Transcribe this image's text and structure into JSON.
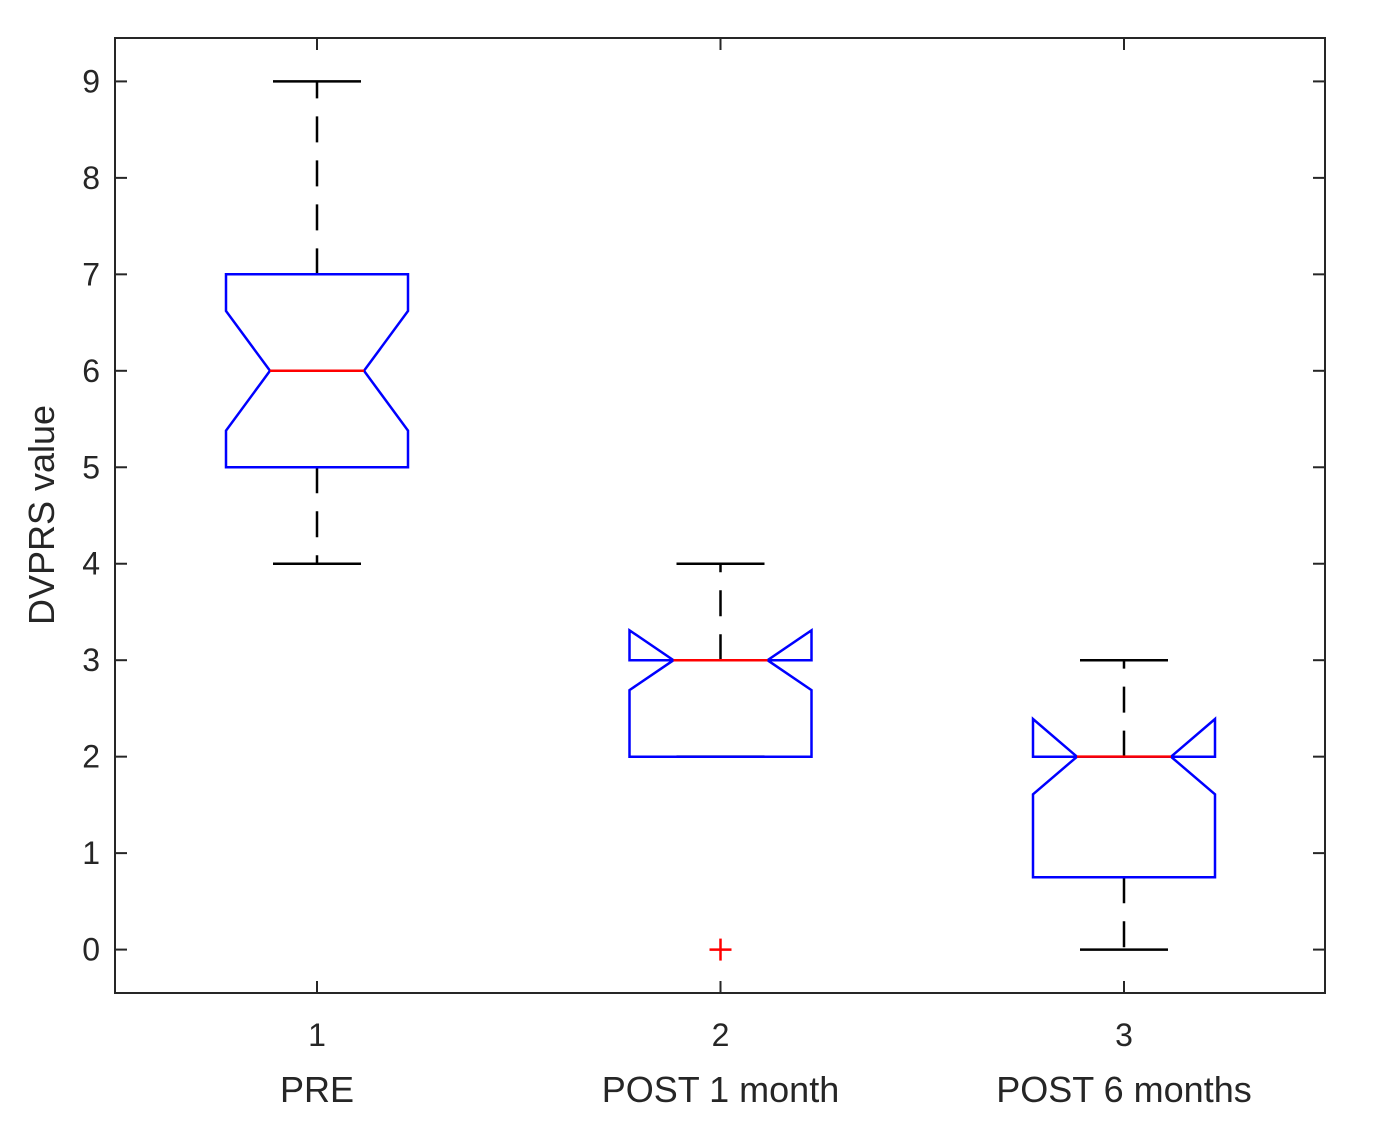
{
  "chart_data": {
    "type": "boxplot",
    "title": "",
    "xlabel": "",
    "ylabel": "DVPRS value",
    "ylim": [
      -0.45,
      9.45
    ],
    "yticks": [
      0,
      1,
      2,
      3,
      4,
      5,
      6,
      7,
      8,
      9
    ],
    "grid": false,
    "notched": true,
    "categories": [
      {
        "tick": "1",
        "name": "PRE"
      },
      {
        "tick": "2",
        "name": "POST 1 month"
      },
      {
        "tick": "3",
        "name": "POST 6 months"
      }
    ],
    "boxes": [
      {
        "whisker_low": 4,
        "q1": 5,
        "median": 6,
        "q3": 7,
        "whisker_high": 9,
        "notch_low": 5.38,
        "notch_high": 6.62,
        "outliers": []
      },
      {
        "whisker_low": 2,
        "q1": 2,
        "median": 3,
        "q3": 3,
        "whisker_high": 4,
        "notch_low": 2.69,
        "notch_high": 3.31,
        "outliers": [
          0
        ]
      },
      {
        "whisker_low": 0,
        "q1": 0.75,
        "median": 2,
        "q3": 2,
        "whisker_high": 3,
        "notch_low": 1.61,
        "notch_high": 2.39,
        "outliers": []
      }
    ],
    "colors": {
      "box": "#0000ff",
      "median": "#ff0000",
      "whisker": "#000000",
      "outlier": "#ff0000",
      "axis": "#262626"
    }
  }
}
